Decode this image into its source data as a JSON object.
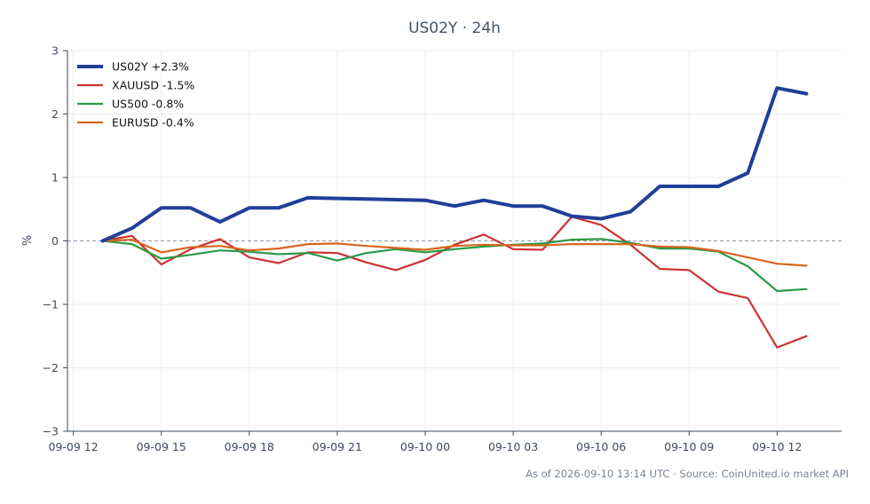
{
  "chart_data": {
    "type": "line",
    "title": "US02Y · 24h",
    "xlabel": "",
    "ylabel": "%",
    "ylim": [
      -3,
      3
    ],
    "y_ticks": [
      "−3",
      "−2",
      "−1",
      "0",
      "1",
      "2",
      "3"
    ],
    "y_tick_values": [
      -3,
      -2,
      -1,
      0,
      1,
      2,
      3
    ],
    "x_tick_labels": [
      "09-09 12",
      "09-09 15",
      "09-09 18",
      "09-09 21",
      "09-10 00",
      "09-10 03",
      "09-10 06",
      "09-10 09",
      "09-10 12"
    ],
    "x_tick_hours": [
      0,
      3,
      6,
      9,
      12,
      15,
      18,
      21,
      24
    ],
    "x_hours_range": [
      -0.2,
      26.2
    ],
    "x_hours": [
      1,
      2,
      3,
      4,
      5,
      6,
      7,
      8,
      9,
      10,
      11,
      12,
      13,
      14,
      15,
      16,
      17,
      18,
      19,
      20,
      21,
      22,
      23,
      24,
      25
    ],
    "grid": true,
    "zero_line": true,
    "legend_position": "top-left",
    "series": [
      {
        "name": "US02Y +2.3%",
        "color": "#1f3f99",
        "width": 4,
        "values": [
          0,
          0.2,
          0.52,
          0.52,
          0.3,
          0.52,
          0.52,
          0.68,
          0.67,
          0.66,
          0.65,
          0.64,
          0.55,
          0.64,
          0.55,
          0.55,
          0.39,
          0.35,
          0.46,
          0.86,
          0.86,
          0.86,
          1.07,
          2.41,
          2.32
        ]
      },
      {
        "name": "XAUUSD -1.5%",
        "color": "#cc3333",
        "width": 2.2,
        "values": [
          0,
          0.08,
          -0.37,
          -0.13,
          0.03,
          -0.26,
          -0.35,
          -0.18,
          -0.19,
          -0.34,
          -0.46,
          -0.3,
          -0.06,
          0.1,
          -0.13,
          -0.14,
          0.38,
          0.25,
          -0.06,
          -0.44,
          -0.46,
          -0.8,
          -0.9,
          -1.68,
          -1.5
        ]
      },
      {
        "name": "US500 -0.8%",
        "color": "#2b9a49",
        "width": 2.2,
        "values": [
          0,
          -0.05,
          -0.28,
          -0.22,
          -0.15,
          -0.17,
          -0.21,
          -0.19,
          -0.31,
          -0.19,
          -0.13,
          -0.18,
          -0.13,
          -0.09,
          -0.06,
          -0.04,
          0.02,
          0.03,
          -0.03,
          -0.12,
          -0.12,
          -0.17,
          -0.4,
          -0.79,
          -0.76
        ]
      },
      {
        "name": "EURUSD -0.4%",
        "color": "#d8651f",
        "width": 2.2,
        "values": [
          0,
          0.02,
          -0.18,
          -0.1,
          -0.08,
          -0.15,
          -0.12,
          -0.05,
          -0.04,
          -0.08,
          -0.11,
          -0.14,
          -0.08,
          -0.06,
          -0.07,
          -0.07,
          -0.05,
          -0.05,
          -0.05,
          -0.09,
          -0.1,
          -0.16,
          -0.26,
          -0.36,
          -0.39
        ]
      }
    ],
    "footer": "As of 2026-09-10 13:14 UTC · Source: CoinUnited.io market API"
  }
}
